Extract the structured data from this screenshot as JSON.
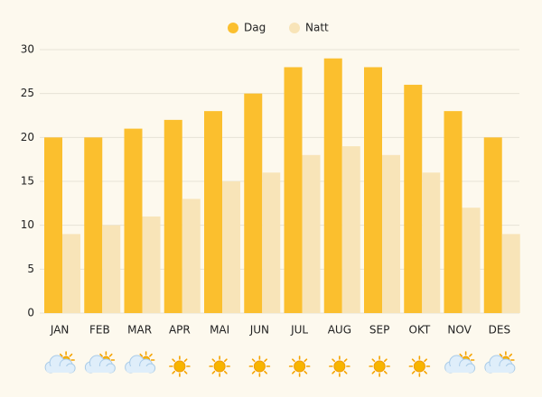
{
  "chart_data": {
    "type": "bar",
    "categories": [
      "JAN",
      "FEB",
      "MAR",
      "APR",
      "MAI",
      "JUN",
      "JUL",
      "AUG",
      "SEP",
      "OKT",
      "NOV",
      "DES"
    ],
    "series": [
      {
        "name": "Dag",
        "color": "#fbbf2e",
        "values": [
          20,
          20,
          21,
          22,
          23,
          25,
          28,
          29,
          28,
          26,
          23,
          20
        ]
      },
      {
        "name": "Natt",
        "color": "#f8e4b8",
        "values": [
          9,
          10,
          11,
          13,
          15,
          16,
          18,
          19,
          18,
          16,
          12,
          9
        ]
      }
    ],
    "ylim": [
      0,
      30
    ],
    "yticks": [
      0,
      5,
      10,
      15,
      20,
      25,
      30
    ],
    "grid": true,
    "legend": "top"
  }
}
